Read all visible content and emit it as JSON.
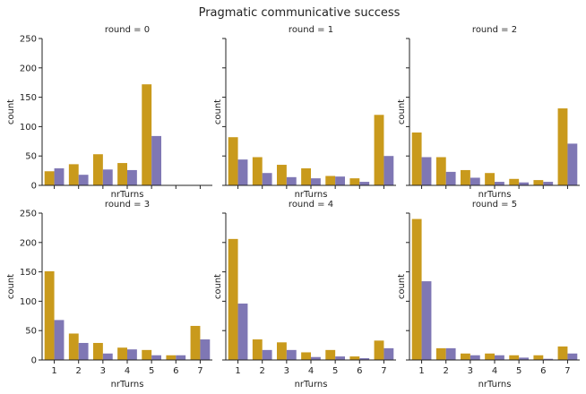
{
  "figure_title": "Pragmatic communicative success",
  "colors": {
    "series_a": "#c99a1c",
    "series_b": "#7f77b4",
    "axis": "#222222"
  },
  "chart_data": [
    {
      "type": "bar",
      "title": "round = 0",
      "xlabel": "nrTurns",
      "ylabel": "count",
      "categories": [
        "1",
        "2",
        "3",
        "4",
        "5",
        "6",
        "7"
      ],
      "ylim": [
        0,
        250
      ],
      "yticks": [
        "0",
        "50",
        "100",
        "150",
        "200",
        "250"
      ],
      "series": [
        {
          "values": [
            24,
            36,
            53,
            38,
            172,
            0,
            0
          ]
        },
        {
          "values": [
            29,
            18,
            27,
            26,
            84,
            0,
            0
          ]
        }
      ]
    },
    {
      "type": "bar",
      "title": "round = 1",
      "xlabel": "nrTurns",
      "ylabel": "count",
      "categories": [
        "1",
        "2",
        "3",
        "4",
        "5",
        "6",
        "7"
      ],
      "ylim": [
        0,
        250
      ],
      "yticks": [
        "0",
        "50",
        "100",
        "150",
        "200",
        "250"
      ],
      "series": [
        {
          "values": [
            82,
            48,
            35,
            29,
            16,
            12,
            120
          ]
        },
        {
          "values": [
            44,
            21,
            14,
            12,
            15,
            6,
            50
          ]
        }
      ]
    },
    {
      "type": "bar",
      "title": "round = 2",
      "xlabel": "nrTurns",
      "ylabel": "count",
      "categories": [
        "1",
        "2",
        "3",
        "4",
        "5",
        "6",
        "7"
      ],
      "ylim": [
        0,
        250
      ],
      "yticks": [
        "0",
        "50",
        "100",
        "150",
        "200",
        "250"
      ],
      "series": [
        {
          "values": [
            90,
            48,
            26,
            21,
            11,
            9,
            131
          ]
        },
        {
          "values": [
            48,
            23,
            13,
            6,
            5,
            6,
            71
          ]
        }
      ]
    },
    {
      "type": "bar",
      "title": "round = 3",
      "xlabel": "nrTurns",
      "ylabel": "count",
      "categories": [
        "1",
        "2",
        "3",
        "4",
        "5",
        "6",
        "7"
      ],
      "ylim": [
        0,
        250
      ],
      "yticks": [
        "0",
        "50",
        "100",
        "150",
        "200",
        "250"
      ],
      "series": [
        {
          "values": [
            151,
            45,
            29,
            21,
            17,
            8,
            58
          ]
        },
        {
          "values": [
            68,
            29,
            11,
            18,
            8,
            8,
            35
          ]
        }
      ]
    },
    {
      "type": "bar",
      "title": "round = 4",
      "xlabel": "nrTurns",
      "ylabel": "count",
      "categories": [
        "1",
        "2",
        "3",
        "4",
        "5",
        "6",
        "7"
      ],
      "ylim": [
        0,
        250
      ],
      "yticks": [
        "0",
        "50",
        "100",
        "150",
        "200",
        "250"
      ],
      "series": [
        {
          "values": [
            206,
            35,
            30,
            13,
            17,
            6,
            33
          ]
        },
        {
          "values": [
            96,
            17,
            17,
            5,
            6,
            3,
            20
          ]
        }
      ]
    },
    {
      "type": "bar",
      "title": "round = 5",
      "xlabel": "nrTurns",
      "ylabel": "count",
      "categories": [
        "1",
        "2",
        "3",
        "4",
        "5",
        "6",
        "7"
      ],
      "ylim": [
        0,
        250
      ],
      "yticks": [
        "0",
        "50",
        "100",
        "150",
        "200",
        "250"
      ],
      "series": [
        {
          "values": [
            240,
            20,
            11,
            11,
            8,
            8,
            23
          ]
        },
        {
          "values": [
            134,
            20,
            8,
            8,
            4,
            2,
            11
          ]
        }
      ]
    }
  ]
}
